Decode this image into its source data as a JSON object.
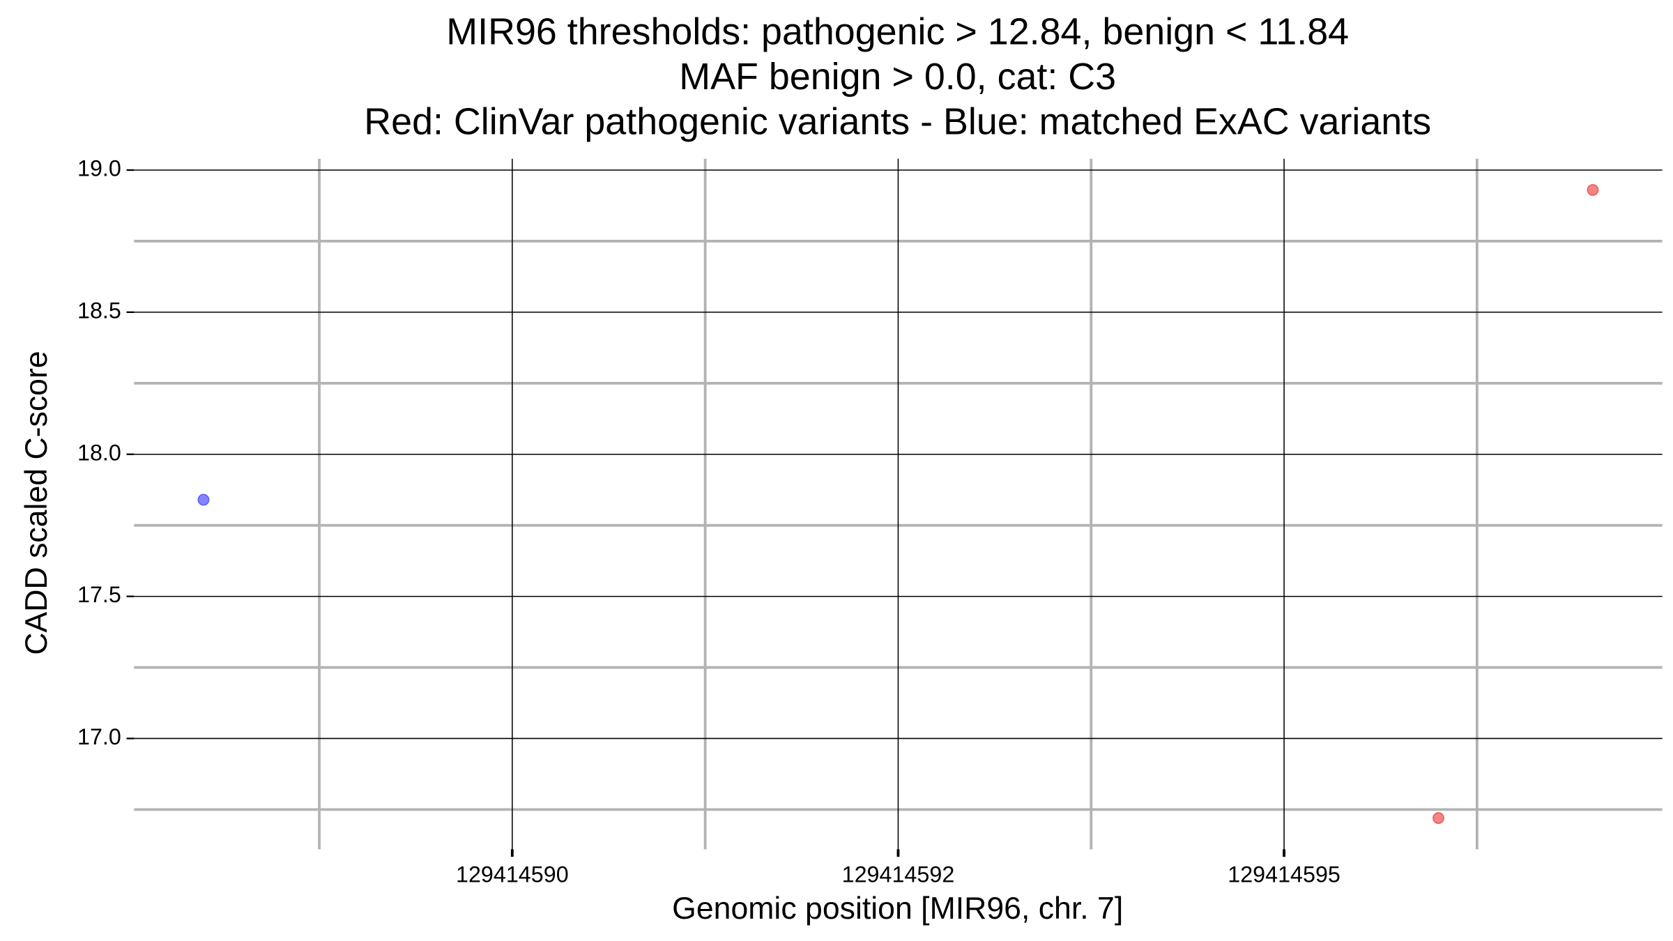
{
  "chart_data": {
    "type": "scatter",
    "title": [
      "MIR96 thresholds: pathogenic > 12.84, benign < 11.84",
      "MAF benign > 0.0, cat: C3",
      "Red: ClinVar pathogenic variants - Blue: matched ExAC variants"
    ],
    "x_label": "Genomic position [MIR96, chr. 7]",
    "y_label": "CADD scaled C-score",
    "xlim": [
      129414587.55,
      129414597.45
    ],
    "ylim": [
      16.61,
      19.04
    ],
    "xticks": [
      129414590,
      {
        "value": 129414592.5,
        "label": "129414592"
      },
      129414595
    ],
    "yticks": [
      {
        "value": 17,
        "label": "17.0"
      },
      17.5,
      {
        "value": 18,
        "label": "18.0"
      },
      18.5,
      {
        "value": 19,
        "label": "19.0"
      }
    ],
    "minor_xticks": [
      129414588.75,
      129414591.25,
      129414593.75,
      129414596.25
    ],
    "minor_yticks": [
      16.75,
      17.25,
      17.75,
      18.25,
      18.75
    ],
    "grid": true,
    "series": [
      {
        "color": "#3333ff",
        "x": [
          129414588
        ],
        "values": [
          17.84
        ]
      },
      {
        "color": "#ee3333",
        "x": [
          129414596,
          129414597
        ],
        "values": [
          16.72,
          18.93
        ]
      }
    ]
  }
}
